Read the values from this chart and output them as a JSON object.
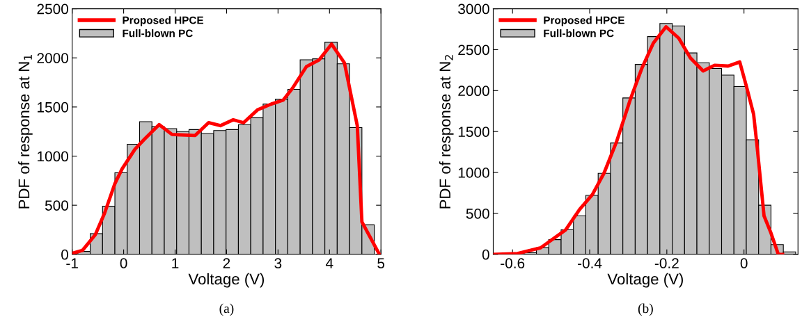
{
  "chart_data": [
    {
      "type": "histogram",
      "xlabel": "Voltage (V)",
      "ylabel": "PDF of response at N$_{1}$",
      "annotations": [
        "(a)"
      ],
      "xlim": [
        -1,
        5
      ],
      "xticks": [
        -1,
        0,
        1,
        2,
        3,
        4,
        5
      ],
      "ylim": [
        0,
        2500
      ],
      "yticks": [
        0,
        500,
        1000,
        1500,
        2000,
        2500
      ],
      "grid": false,
      "legend": "top left",
      "series": [
        {
          "name": "Proposed HPCE",
          "type": "line",
          "color": "#ff0000",
          "x": [
            -1.0,
            -0.8,
            -0.55,
            -0.37,
            -0.17,
            -0.03,
            0.22,
            0.4,
            0.69,
            0.94,
            1.39,
            1.65,
            1.88,
            2.13,
            2.33,
            2.6,
            2.87,
            3.1,
            3.28,
            3.55,
            3.8,
            4.04,
            4.29,
            4.54,
            4.63,
            4.97
          ],
          "values": [
            10,
            40,
            200,
            420,
            720,
            870,
            1070,
            1170,
            1320,
            1220,
            1210,
            1340,
            1310,
            1370,
            1340,
            1470,
            1530,
            1570,
            1690,
            1910,
            1980,
            2140,
            1950,
            1310,
            330,
            0
          ]
        },
        {
          "name": "Full-blown PC",
          "color": "#bfbfbf",
          "bins": [
            -0.89,
            -0.65,
            -0.41,
            -0.17,
            0.07,
            0.31,
            0.55,
            0.79,
            1.03,
            1.27,
            1.51,
            1.75,
            1.99,
            2.23,
            2.47,
            2.71,
            2.95,
            3.19,
            3.43,
            3.67,
            3.91,
            4.15,
            4.39,
            4.63,
            4.87
          ],
          "values": [
            30,
            210,
            490,
            830,
            1120,
            1350,
            1300,
            1280,
            1250,
            1270,
            1230,
            1260,
            1270,
            1320,
            1390,
            1530,
            1580,
            1680,
            1980,
            1990,
            2160,
            1940,
            1290,
            300
          ]
        }
      ]
    },
    {
      "type": "histogram",
      "xlabel": "Voltage (V)",
      "ylabel": "PDF of response at N$_{2}$",
      "annotations": [
        "(b)"
      ],
      "xlim": [
        -0.65,
        0.14
      ],
      "xticks": [
        -0.6,
        -0.4,
        -0.2,
        0
      ],
      "ylim": [
        0,
        3000
      ],
      "yticks": [
        0,
        500,
        1000,
        1500,
        2000,
        2500,
        3000
      ],
      "grid": false,
      "legend": "top left",
      "series": [
        {
          "name": "Proposed HPCE",
          "type": "line",
          "color": "#ff0000",
          "x": [
            -0.65,
            -0.587,
            -0.527,
            -0.462,
            -0.426,
            -0.393,
            -0.363,
            -0.33,
            -0.294,
            -0.265,
            -0.235,
            -0.202,
            -0.169,
            -0.139,
            -0.106,
            -0.076,
            -0.041,
            -0.011,
            0.007,
            0.025,
            0.034,
            0.052,
            0.07,
            0.089,
            0.1
          ],
          "values": [
            0,
            10,
            80,
            300,
            550,
            730,
            990,
            1380,
            1900,
            2270,
            2580,
            2780,
            2640,
            2400,
            2240,
            2310,
            2300,
            2350,
            2040,
            1710,
            1320,
            470,
            260,
            0,
            0
          ]
        },
        {
          "name": "Full-blown PC",
          "color": "#bfbfbf",
          "bins": [
            -0.57,
            -0.538,
            -0.506,
            -0.474,
            -0.442,
            -0.41,
            -0.378,
            -0.346,
            -0.314,
            -0.282,
            -0.25,
            -0.218,
            -0.186,
            -0.154,
            -0.122,
            -0.09,
            -0.058,
            -0.026,
            0.006,
            0.038,
            0.07,
            0.102,
            0.134
          ],
          "values": [
            20,
            80,
            180,
            300,
            470,
            720,
            990,
            1360,
            1910,
            2320,
            2660,
            2820,
            2790,
            2460,
            2340,
            2270,
            2190,
            2050,
            1400,
            600,
            120,
            30
          ]
        }
      ]
    }
  ]
}
